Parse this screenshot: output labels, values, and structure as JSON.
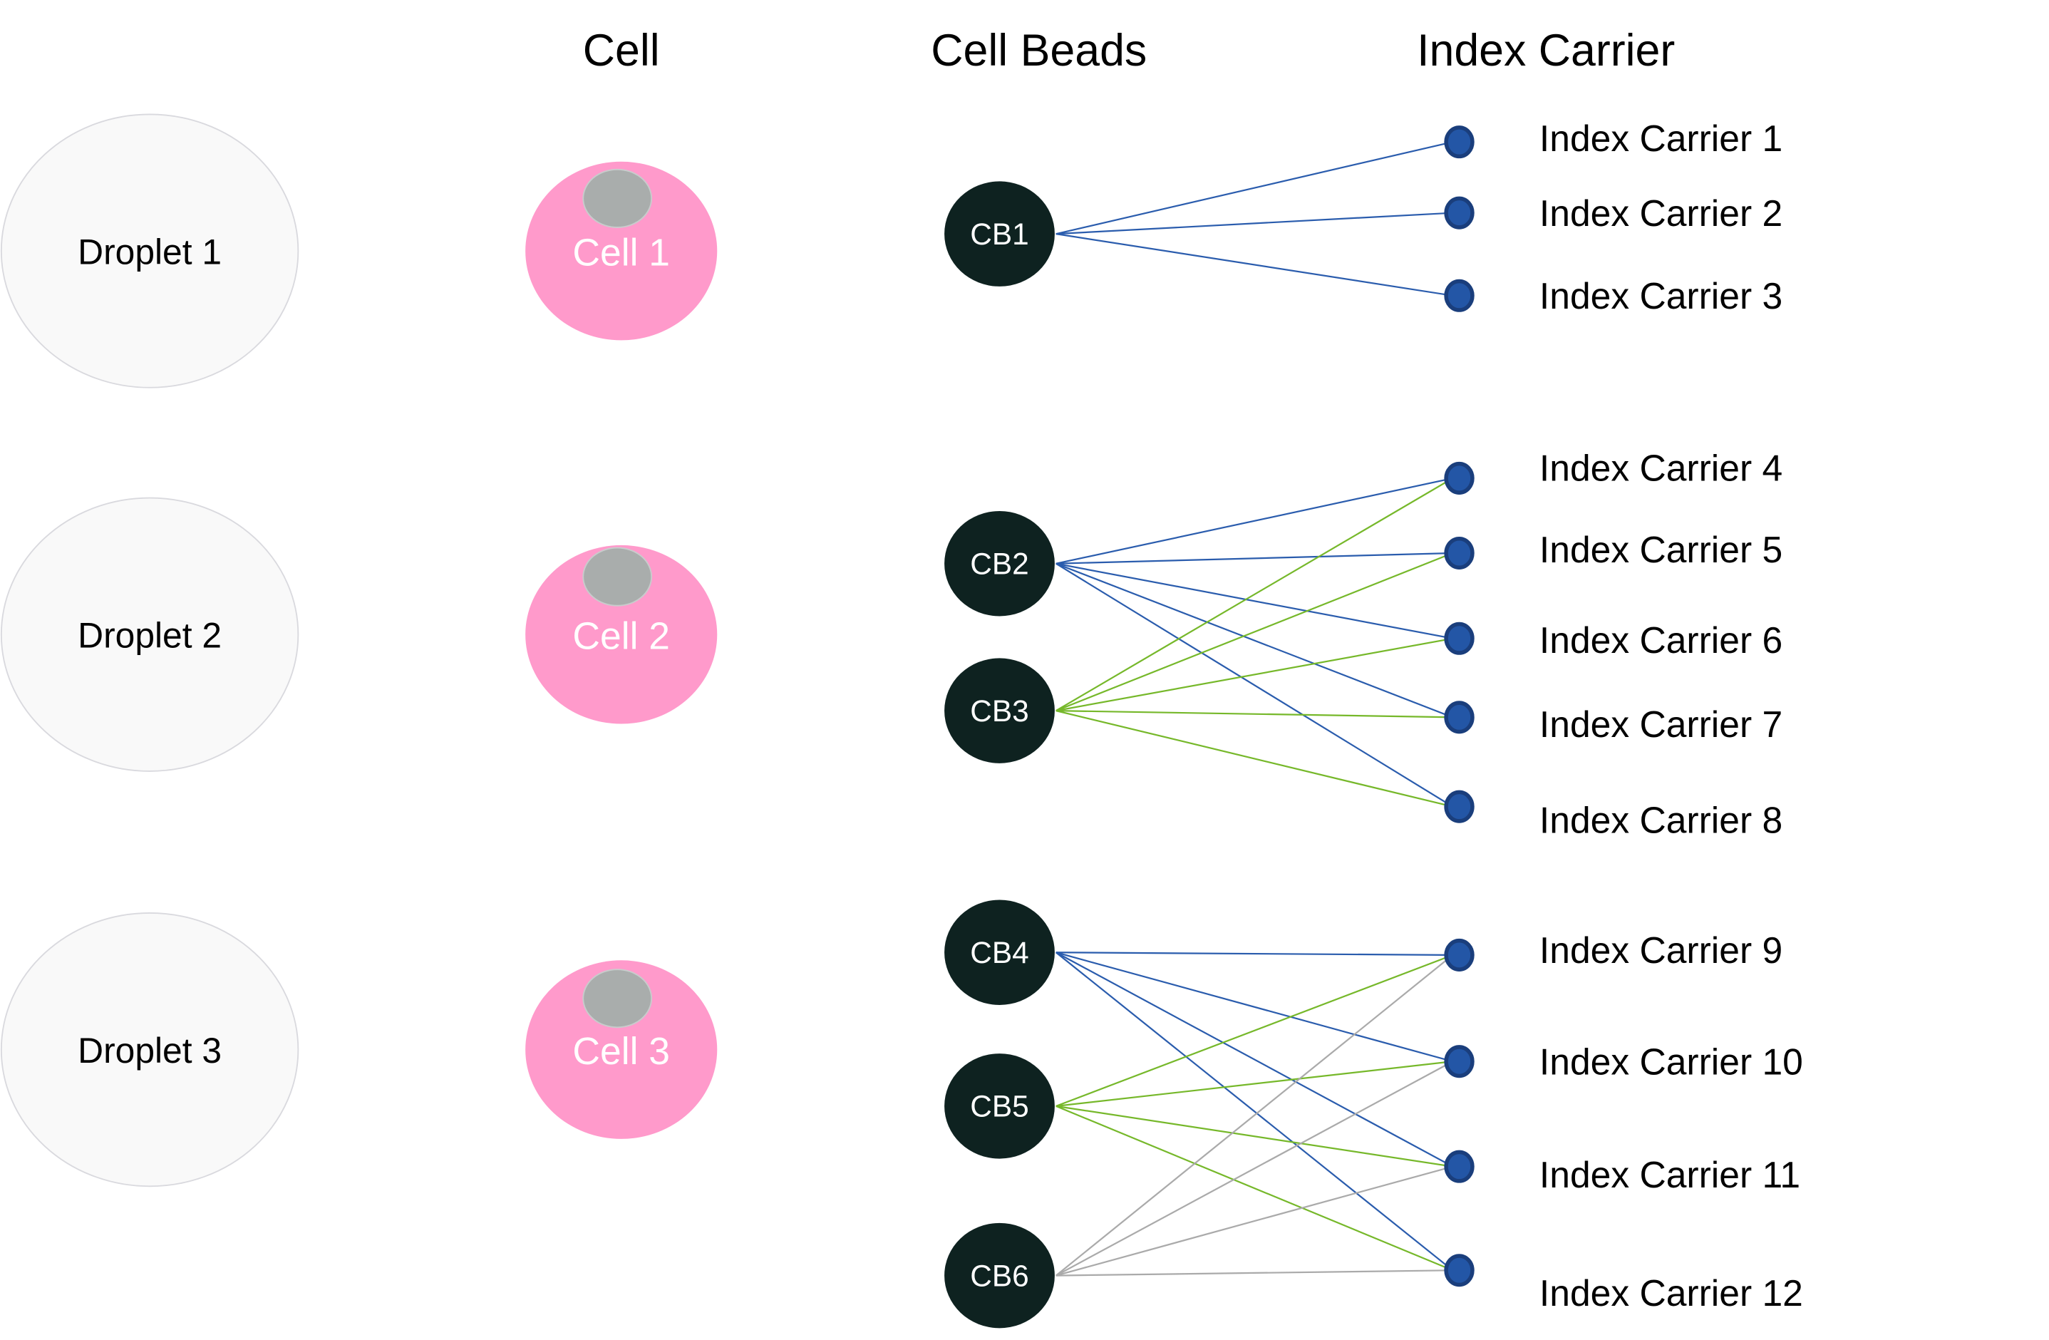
{
  "headers": {
    "cell": "Cell",
    "cell_beads": "Cell Beads",
    "index_carrier": "Index Carrier"
  },
  "droplets": [
    {
      "label": "Droplet 1"
    },
    {
      "label": "Droplet 2"
    },
    {
      "label": "Droplet 3"
    }
  ],
  "cells": [
    {
      "label": "Cell 1"
    },
    {
      "label": "Cell 2"
    },
    {
      "label": "Cell 3"
    }
  ],
  "cell_beads": [
    {
      "label": "CB1"
    },
    {
      "label": "CB2"
    },
    {
      "label": "CB3"
    },
    {
      "label": "CB4"
    },
    {
      "label": "CB5"
    },
    {
      "label": "CB6"
    }
  ],
  "index_carriers": [
    {
      "label": "Index Carrier 1"
    },
    {
      "label": "Index Carrier 2"
    },
    {
      "label": "Index Carrier 3"
    },
    {
      "label": "Index Carrier 4"
    },
    {
      "label": "Index Carrier 5"
    },
    {
      "label": "Index Carrier 6"
    },
    {
      "label": "Index Carrier 7"
    },
    {
      "label": "Index Carrier 8"
    },
    {
      "label": "Index Carrier 9"
    },
    {
      "label": "Index Carrier 10"
    },
    {
      "label": "Index Carrier 11"
    },
    {
      "label": "Index Carrier 12"
    }
  ],
  "edges": [
    {
      "from": "CB1",
      "to": [
        1,
        2,
        3
      ],
      "color": "#2a5cad"
    },
    {
      "from": "CB2",
      "to": [
        4,
        5,
        6,
        7,
        8
      ],
      "color": "#2a5cad"
    },
    {
      "from": "CB3",
      "to": [
        4,
        5,
        6,
        7,
        8
      ],
      "color": "#76b82a"
    },
    {
      "from": "CB4",
      "to": [
        9,
        10,
        11,
        12
      ],
      "color": "#2a5cad"
    },
    {
      "from": "CB5",
      "to": [
        9,
        10,
        11,
        12
      ],
      "color": "#76b82a"
    },
    {
      "from": "CB6",
      "to": [
        9,
        10,
        11,
        12
      ],
      "color": "#aaaaaa"
    }
  ],
  "colors": {
    "droplet_fill": "#f9f9f9",
    "droplet_stroke": "#d9d9de",
    "cell_fill": "#ff9acb",
    "nucleus_fill": "#a9adac",
    "bead_fill": "#0e2220",
    "carrier_fill": "#2356a6",
    "carrier_stroke": "#1a3e7c"
  }
}
